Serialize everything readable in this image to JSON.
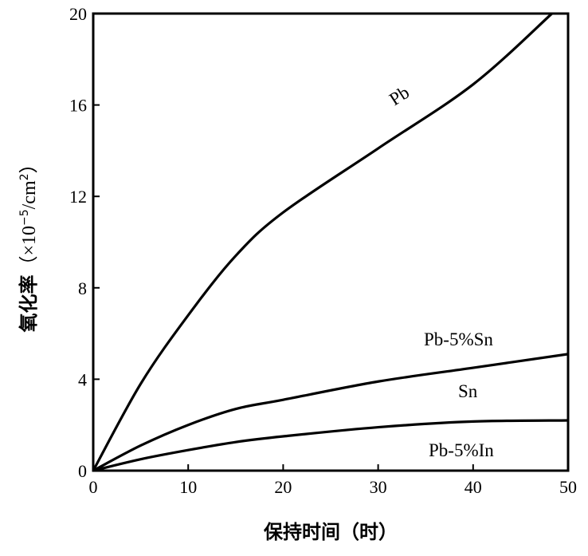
{
  "chart_data": {
    "type": "line",
    "title": "",
    "xlabel": "保持时间（时）",
    "ylabel_main": "氧化率",
    "ylabel_unit_prefix": "（×10",
    "ylabel_unit_exp": "−5",
    "ylabel_unit_mid": "/cm",
    "ylabel_unit_exp2": "2",
    "ylabel_unit_suffix": "）",
    "xlim": [
      0,
      50
    ],
    "ylim": [
      0,
      20
    ],
    "xticks": [
      0,
      10,
      20,
      30,
      40,
      50
    ],
    "yticks": [
      0,
      4,
      8,
      12,
      16,
      20
    ],
    "grid": false,
    "series": [
      {
        "name": "Pb",
        "x": [
          0,
          5,
          10,
          15,
          20,
          30,
          40,
          48.3
        ],
        "y": [
          0,
          3.8,
          6.8,
          9.4,
          11.3,
          14.1,
          16.9,
          20
        ]
      },
      {
        "name": "",
        "x": [
          0,
          5,
          10,
          15,
          20,
          30,
          40,
          50
        ],
        "y": [
          0,
          1.1,
          2.0,
          2.7,
          3.1,
          3.9,
          4.5,
          5.1
        ]
      },
      {
        "name": "",
        "x": [
          0,
          5,
          10,
          15,
          20,
          30,
          40,
          50
        ],
        "y": [
          0,
          0.5,
          0.9,
          1.25,
          1.5,
          1.9,
          2.15,
          2.2
        ]
      }
    ],
    "annotations": [
      {
        "text": "Pb",
        "x": 33,
        "y": 16.5
      },
      {
        "text": "Pb-5%Sn",
        "x": 41,
        "y": 5.8
      },
      {
        "text": "Sn",
        "x": 41,
        "y": 3.6
      },
      {
        "text": "Pb-5%In",
        "x": 41,
        "y": 1.1
      }
    ],
    "line_color": "#000000"
  }
}
